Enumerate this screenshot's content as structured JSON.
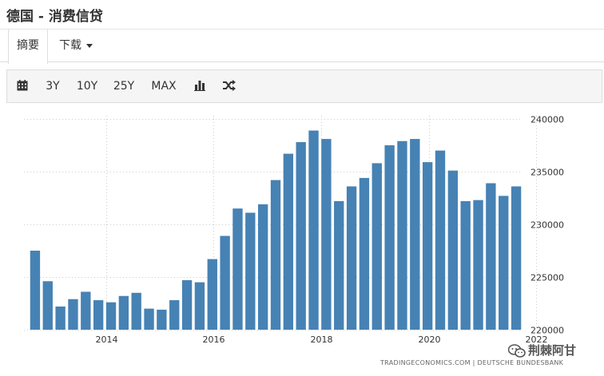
{
  "header": {
    "title": "德国 - 消费信贷"
  },
  "tabs": [
    {
      "label": "摘要"
    },
    {
      "label": "下载"
    }
  ],
  "toolbar": {
    "calendar_icon": "calendar-icon",
    "ranges": [
      "3Y",
      "10Y",
      "25Y",
      "MAX"
    ],
    "chart_type_icon": "bar-chart-icon",
    "compare_icon": "shuffle-icon"
  },
  "chart_data": {
    "type": "bar",
    "title": "",
    "xlabel": "",
    "ylabel": "",
    "ylim": [
      220000,
      240000
    ],
    "yticks": [
      "240000",
      "235000",
      "230000",
      "225000",
      "220000"
    ],
    "ytick_values": [
      240000,
      235000,
      230000,
      225000,
      220000
    ],
    "xticks": [
      "2014",
      "2016",
      "2018",
      "2020",
      "2022"
    ],
    "xtick_index": [
      6.1,
      14.6,
      23.1,
      31.6,
      40.1
    ],
    "grid": true,
    "legend": "none",
    "bar_color": "#4682b4",
    "values": [
      227500,
      224600,
      222200,
      222900,
      223600,
      222800,
      222600,
      223200,
      223500,
      222000,
      221900,
      222800,
      224700,
      224500,
      226700,
      228900,
      231500,
      231100,
      231900,
      234200,
      236700,
      237800,
      238900,
      238100,
      232200,
      233600,
      234400,
      235800,
      237500,
      237900,
      238100,
      235900,
      237000,
      235100,
      232200,
      232300,
      233900,
      232700,
      233600
    ]
  },
  "footer": {
    "credit": "TRADINGECONOMICS.COM  |  DEUTSCHE BUNDESBANK",
    "watermark": "荆棘阿甘"
  }
}
